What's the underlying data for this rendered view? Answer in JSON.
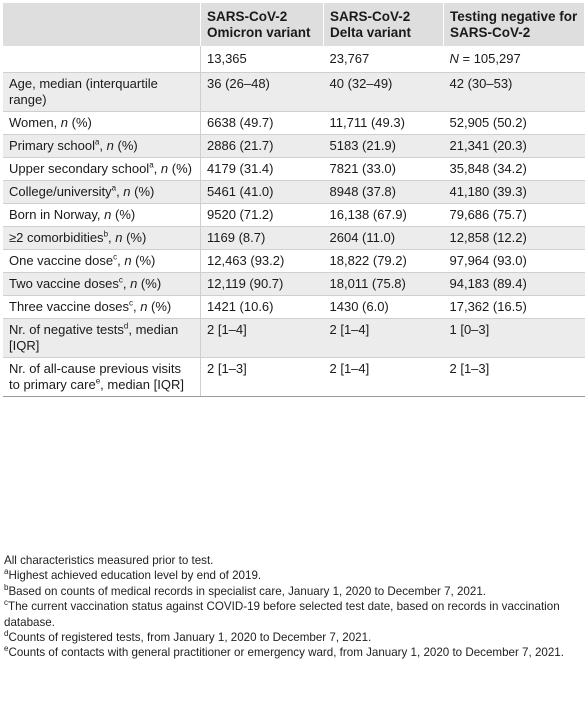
{
  "table": {
    "headers": [
      "",
      "SARS-CoV-2 Omicron variant",
      "SARS-CoV-2 Delta variant",
      "Testing negative for SARS-CoV-2"
    ],
    "counts": [
      "",
      "13,365",
      "23,767",
      "N = 105,297"
    ],
    "rows": [
      {
        "label": "Age, median (interquartile range)",
        "sup": "",
        "suffix": "",
        "values": [
          "36 (26–48)",
          "40 (32–49)",
          "42 (30–53)"
        ]
      },
      {
        "label": "Women, ",
        "sup": "",
        "suffix": "n (%)",
        "values": [
          "6638 (49.7)",
          "11,711 (49.3)",
          "52,905 (50.2)"
        ]
      },
      {
        "label": "Primary school",
        "sup": "a",
        "suffix": ", n (%)",
        "values": [
          "2886 (21.7)",
          "5183 (21.9)",
          "21,341 (20.3)"
        ]
      },
      {
        "label": "Upper secondary school",
        "sup": "a",
        "suffix": ", n (%)",
        "values": [
          "4179 (31.4)",
          "7821 (33.0)",
          "35,848 (34.2)"
        ]
      },
      {
        "label": "College/university",
        "sup": "a",
        "suffix": ", n (%)",
        "values": [
          "5461 (41.0)",
          "8948 (37.8)",
          "41,180 (39.3)"
        ]
      },
      {
        "label": "Born in Norway, ",
        "sup": "",
        "suffix": "n (%)",
        "values": [
          "9520 (71.2)",
          "16,138 (67.9)",
          "79,686 (75.7)"
        ]
      },
      {
        "label": "≥2 comorbidities",
        "sup": "b",
        "suffix": ", n (%)",
        "values": [
          "1169 (8.7)",
          "2604 (11.0)",
          "12,858 (12.2)"
        ]
      },
      {
        "label": "One vaccine dose",
        "sup": "c",
        "suffix": ", n (%)",
        "values": [
          "12,463 (93.2)",
          "18,822 (79.2)",
          "97,964 (93.0)"
        ]
      },
      {
        "label": "Two vaccine doses",
        "sup": "c",
        "suffix": ", n (%)",
        "values": [
          "12,119 (90.7)",
          "18,011 (75.8)",
          "94,183 (89.4)"
        ]
      },
      {
        "label": "Three vaccine doses",
        "sup": "c",
        "suffix": ", n (%)",
        "values": [
          "1421 (10.6)",
          "1430 (6.0)",
          "17,362 (16.5)"
        ]
      },
      {
        "label": "Nr. of negative tests",
        "sup": "d",
        "suffix": ", median [IQR]",
        "values": [
          "2 [1–4]",
          "2 [1–4]",
          "1 [0–3]"
        ]
      },
      {
        "label": "Nr. of all-cause previous visits to primary care",
        "sup": "e",
        "suffix": ", median [IQR]",
        "values": [
          "2 [1–3]",
          "2 [1–4]",
          "2 [1–3]"
        ]
      }
    ]
  },
  "footnotes": [
    {
      "mark": "",
      "text": "All characteristics measured prior to test."
    },
    {
      "mark": "a",
      "text": "Highest achieved education level by end of 2019."
    },
    {
      "mark": "b",
      "text": "Based on counts of medical records in specialist care, January 1, 2020 to December 7, 2021."
    },
    {
      "mark": "c",
      "text": "The current vaccination status against COVID-19 before selected test date, based on records in vaccination database."
    },
    {
      "mark": "d",
      "text": "Counts of registered tests, from January 1, 2020 to December 7, 2021."
    },
    {
      "mark": "e",
      "text": "Counts of contacts with general practitioner or emergency ward, from January 1, 2020 to December 7, 2021."
    }
  ]
}
